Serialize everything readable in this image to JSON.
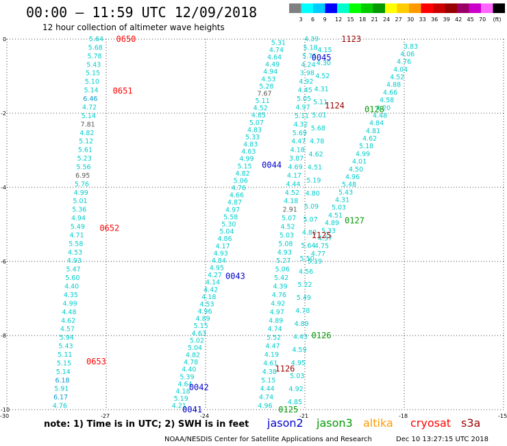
{
  "header": {
    "title": "00:00 – 11:59 UTC 12/09/2018",
    "subtitle": "12 hour collection of altimeter wave heights"
  },
  "colorbar": {
    "unit": "(ft)",
    "colors": [
      "#808080",
      "#00ffff",
      "#00ccff",
      "#0000ff",
      "#00ffcc",
      "#00ff00",
      "#00cc00",
      "#009900",
      "#ffff00",
      "#ffcc00",
      "#ff9900",
      "#ff0000",
      "#cc0000",
      "#990000",
      "#990066",
      "#cc00cc",
      "#ff66ff",
      "#000000"
    ],
    "labels": [
      "3",
      "6",
      "9",
      "12",
      "15",
      "18",
      "21",
      "24",
      "27",
      "30",
      "33",
      "36",
      "39",
      "42",
      "45",
      "70"
    ]
  },
  "axes": {
    "x_ticks": [
      "-30",
      "-27",
      "-24",
      "-21",
      "-18",
      "-15"
    ],
    "y_ticks": [
      "0",
      "-2",
      "-4",
      "-6",
      "-8",
      "-10"
    ]
  },
  "note": "note: 1) Time is in UTC; 2) SWH is in feet",
  "legend": [
    {
      "name": "jason2",
      "color": "#0000cc"
    },
    {
      "name": "jason3",
      "color": "#009900"
    },
    {
      "name": "altika",
      "color": "#ff9900"
    },
    {
      "name": "cryosat",
      "color": "#ff0000"
    },
    {
      "name": "s3a",
      "color": "#990000"
    }
  ],
  "footer": {
    "credit": "NOAA/NESDIS Center for Satellite Applications and Research",
    "timestamp": "Dec 10 13:27:15 UTC 2018"
  },
  "pass_labels": [
    {
      "text": "0650",
      "lon": -26.7,
      "lat": 0.0,
      "color": "#ff0000"
    },
    {
      "text": "0651",
      "lon": -26.8,
      "lat": -1.4,
      "color": "#ff0000"
    },
    {
      "text": "0652",
      "lon": -27.2,
      "lat": -5.1,
      "color": "#ff0000"
    },
    {
      "text": "0653",
      "lon": -27.6,
      "lat": -8.7,
      "color": "#ff0000"
    },
    {
      "text": "0045",
      "lon": -20.8,
      "lat": -0.5,
      "color": "#0000cc"
    },
    {
      "text": "0044",
      "lon": -22.3,
      "lat": -3.4,
      "color": "#0000cc"
    },
    {
      "text": "0043",
      "lon": -23.4,
      "lat": -6.4,
      "color": "#0000cc"
    },
    {
      "text": "0042",
      "lon": -24.5,
      "lat": -9.4,
      "color": "#0000cc"
    },
    {
      "text": "0041",
      "lon": -24.7,
      "lat": -10.0,
      "color": "#0000cc"
    },
    {
      "text": "1123",
      "lon": -19.9,
      "lat": 0.0,
      "color": "#990000"
    },
    {
      "text": "1124",
      "lon": -20.4,
      "lat": -1.8,
      "color": "#990000"
    },
    {
      "text": "1125",
      "lon": -20.8,
      "lat": -5.3,
      "color": "#990000"
    },
    {
      "text": "1126",
      "lon": -21.9,
      "lat": -8.9,
      "color": "#990000"
    },
    {
      "text": "0128",
      "lon": -19.2,
      "lat": -1.9,
      "color": "#009900"
    },
    {
      "text": "0127",
      "lon": -19.8,
      "lat": -4.9,
      "color": "#009900"
    },
    {
      "text": "0126",
      "lon": -20.8,
      "lat": -8.0,
      "color": "#009900"
    },
    {
      "text": "0125",
      "lon": -21.8,
      "lat": -10.0,
      "color": "#009900"
    }
  ],
  "tracks": [
    {
      "name": "cryosat-track",
      "color": "#00cccc",
      "lon_start": -27.3,
      "lat_start": 0.0,
      "lon_end": -28.4,
      "lat_end": -9.9,
      "values": [
        "5.64",
        "5.68",
        "5.78",
        "5.43",
        "5.15",
        "5.10",
        "5.14",
        "6.46",
        "4.72",
        "5.14",
        "7.81",
        "4.82",
        "5.12",
        "5.61",
        "5.23",
        "5.56",
        "6.95",
        "5.76",
        "4.99",
        "5.01",
        "5.36",
        "4.94",
        "5.49",
        "4.71",
        "5.58",
        "4.53",
        "4.93",
        "5.47",
        "5.60",
        "4.40",
        "4.35",
        "4.99",
        "4.48",
        "4.62",
        "4.57",
        "5.94",
        "5.43",
        "5.11",
        "5.15",
        "5.14",
        "6.18",
        "5.91",
        "6.17",
        "4.76"
      ]
    },
    {
      "name": "jason2-track-a",
      "color": "#00cccc",
      "lon_start": -21.8,
      "lat_start": -0.1,
      "lon_end": -24.8,
      "lat_end": -9.9,
      "values": [
        "5.31",
        "4.74",
        "4.64",
        "4.49",
        "4.94",
        "4.53",
        "5.28",
        "7.67",
        "5.11",
        "4.52",
        "4.85",
        "5.07",
        "4.83",
        "5.33",
        "4.83",
        "4.63",
        "4.99",
        "5.15",
        "4.82",
        "5.06",
        "4.76",
        "4.66",
        "4.87",
        "4.97",
        "5.58",
        "5.30",
        "5.04",
        "4.86",
        "4.17",
        "4.93",
        "4.84",
        "4.95",
        "4.27",
        "4.14",
        "4.42",
        "4.18",
        "4.53",
        "4.96",
        "4.89",
        "5.15",
        "4.63",
        "5.02",
        "5.04",
        "4.82",
        "4.78",
        "4.40",
        "5.39",
        "4.64",
        "4.18",
        "5.19",
        "4.21"
      ]
    },
    {
      "name": "s3a-track",
      "color": "#00cccc",
      "lon_start": -20.8,
      "lat_start": 0.0,
      "lon_end": -22.2,
      "lat_end": -9.9,
      "values": [
        "4.39",
        "5.18",
        "5.75",
        "4.24",
        "3.98",
        "4.92",
        "4.45",
        "5.05",
        "4.97",
        "5.11",
        "4.32",
        "5.69",
        "4.47",
        "4.18",
        "3.87",
        "4.69",
        "4.17",
        "4.44",
        "4.52",
        "4.18",
        "2.91",
        "5.07",
        "4.52",
        "5.03",
        "5.08",
        "4.93",
        "5.27",
        "5.06",
        "5.42",
        "4.39",
        "4.76",
        "4.92",
        "4.97",
        "4.89",
        "4.74",
        "5.52",
        "4.47",
        "4.19",
        "4.61",
        "4.38",
        "5.15",
        "4.44",
        "4.74",
        "4.96"
      ]
    },
    {
      "name": "jason3-track",
      "color": "#00cccc",
      "lon_start": -20.4,
      "lat_start": -0.3,
      "lon_end": -21.3,
      "lat_end": -9.8,
      "values": [
        "4.15",
        "4.30",
        "4.52",
        "4.31",
        "5.11",
        "5.01",
        "5.68",
        "4.78",
        "4.62",
        "4.51",
        "5.19",
        "4.80",
        "5.09",
        "5.07",
        "4.80",
        "5.64",
        "5.50",
        "4.56",
        "5.22",
        "5.49",
        "4.78",
        "4.89",
        "4.43",
        "4.59",
        "4.95",
        "5.03",
        "4.92",
        "4.85"
      ]
    },
    {
      "name": "altika-track",
      "color": "#00cccc",
      "lon_start": -17.8,
      "lat_start": -0.2,
      "lon_end": -20.7,
      "lat_end": -6.0,
      "values": [
        "3.83",
        "4.06",
        "4.76",
        "4.04",
        "4.52",
        "4.88",
        "4.66",
        "4.58",
        "4.20",
        "4.48",
        "4.84",
        "4.81",
        "4.62",
        "5.18",
        "4.99",
        "4.01",
        "4.50",
        "4.96",
        "5.48",
        "5.43",
        "4.31",
        "5.03",
        "4.51",
        "4.89",
        "5.33",
        "4.57",
        "4.75",
        "4.77",
        "5.19"
      ]
    }
  ]
}
